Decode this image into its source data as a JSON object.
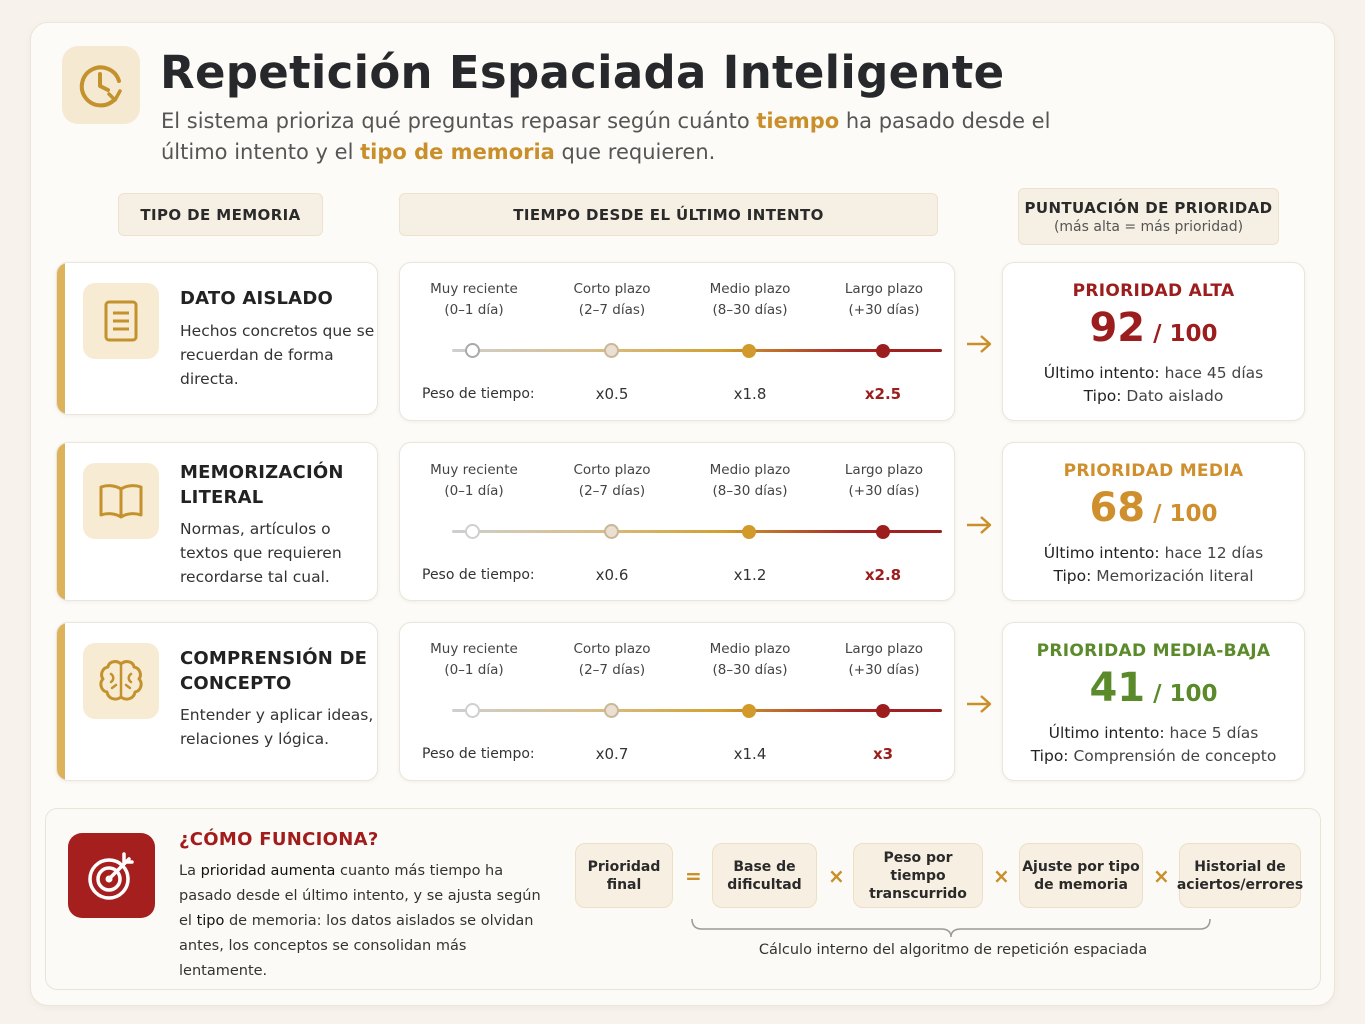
{
  "header": {
    "title": "Repetición Espaciada Inteligente",
    "subtitle_1": "El sistema prioriza qué preguntas repasar según cuánto ",
    "subtitle_hl1": "tiempo",
    "subtitle_2": " ha pasado desde el último intento y el ",
    "subtitle_hl2": "tipo de memoria",
    "subtitle_3": " que requieren."
  },
  "columns": {
    "memory": "TIPO DE MEMORIA",
    "time": "TIEMPO DESDE EL ÚLTIMO INTENTO",
    "priority": "PUNTUACIÓN DE PRIORIDAD",
    "priority_sub": "(más alta = más prioridad)"
  },
  "timeline_labels": [
    {
      "name": "Muy reciente",
      "range": "(0–1 día)"
    },
    {
      "name": "Corto plazo",
      "range": "(2–7 días)"
    },
    {
      "name": "Medio plazo",
      "range": "(8–30 días)"
    },
    {
      "name": "Largo plazo",
      "range": "(+30 días)"
    }
  ],
  "weight_label": "Peso de tiempo:",
  "rows": [
    {
      "memory_title": "DATO AISLADO",
      "memory_desc": "Hechos concretos que se recuerdan de forma directa.",
      "icon": "document-icon",
      "weights": [
        "x0.5",
        "x1.8",
        "x2.5"
      ],
      "priority_label": "PRIORIDAD ALTA",
      "priority_color": "#9b1d1d",
      "score": "92",
      "score_den": " / 100",
      "last_label": "Último intento:",
      "last_value": " hace 45 días",
      "type_label": "Tipo:",
      "type_value": " Dato aislado"
    },
    {
      "memory_title": "MEMORIZACIÓN LITERAL",
      "memory_desc": "Normas, artículos o textos que requieren recordarse tal cual.",
      "icon": "open-book-icon",
      "weights": [
        "x0.6",
        "x1.2",
        "x2.8"
      ],
      "priority_label": "PRIORIDAD MEDIA",
      "priority_color": "#cf8f2c",
      "score": "68",
      "score_den": " / 100",
      "last_label": "Último intento:",
      "last_value": " hace 12 días",
      "type_label": "Tipo:",
      "type_value": " Memorización literal"
    },
    {
      "memory_title": "COMPRENSIÓN DE CONCEPTO",
      "memory_desc": "Entender y aplicar ideas, relaciones y lógica.",
      "icon": "brain-icon",
      "weights": [
        "x0.7",
        "x1.4",
        "x3"
      ],
      "priority_label": "PRIORIDAD MEDIA-BAJA",
      "priority_color": "#5b8a2a",
      "score": "41",
      "score_den": " / 100",
      "last_label": "Último intento:",
      "last_value": " hace 5 días",
      "type_label": "Tipo:",
      "type_value": " Comprensión de concepto"
    }
  ],
  "how": {
    "title": "¿CÓMO FUNCIONA?",
    "d1": "La ",
    "d2": "prioridad aumenta",
    "d3": " cuanto más tiempo ha pasado desde el último intento, y se ajusta según el ",
    "d4": "tipo",
    "d5": " de memoria: los datos aislados se olvidan antes, los conceptos se consolidan más lentamente.",
    "formula": {
      "result": "Prioridad final",
      "eq": "=",
      "times": "×",
      "f1": "Base de dificultad",
      "f2": "Peso por tiempo transcurrido",
      "f3": "Ajuste por tipo de memoria",
      "f4": "Historial de aciertos/errores"
    },
    "caption": "Cálculo interno del algoritmo de repetición espaciada"
  },
  "colors": {
    "accent": "#c98f2a",
    "red": "#9b1d1d",
    "mem_bar": "#dcb25a"
  }
}
